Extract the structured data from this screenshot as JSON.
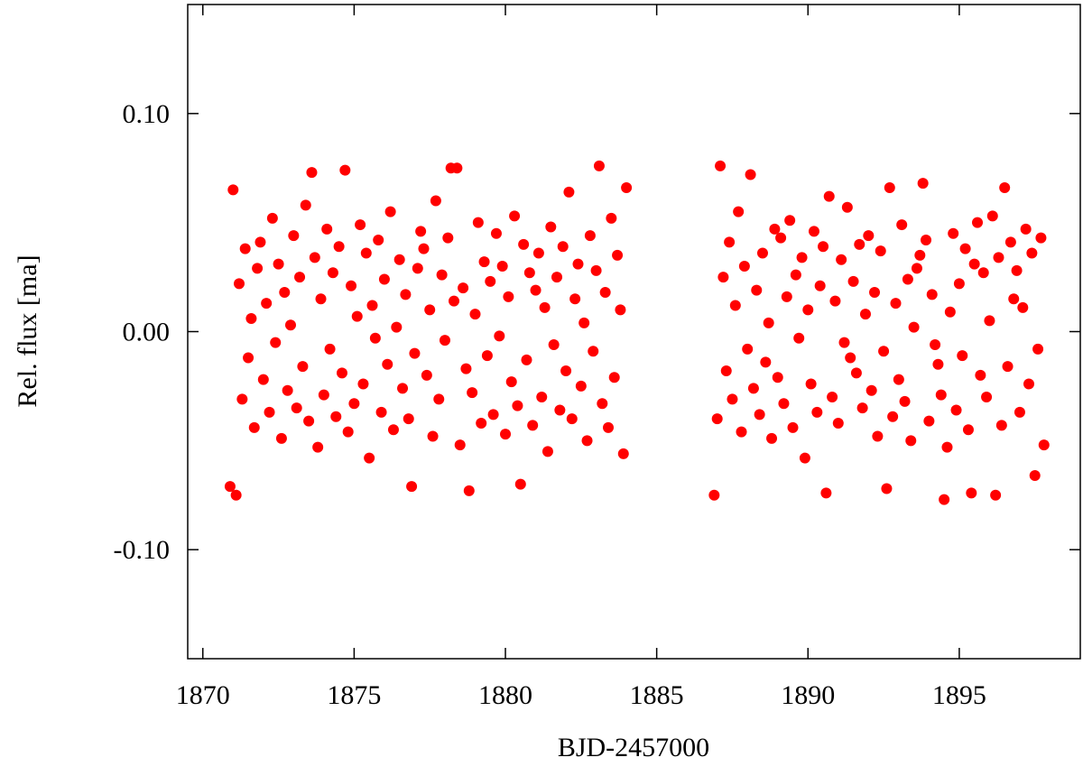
{
  "chart_data": {
    "type": "scatter",
    "x_label": "BJD-2457000",
    "y_label": "Rel. flux [ma]",
    "xlim": [
      1869.5,
      1899
    ],
    "ylim": [
      -0.15,
      0.15
    ],
    "xticks": [
      1870,
      1875,
      1880,
      1885,
      1890,
      1895
    ],
    "yticks": [
      {
        "value": 0.1,
        "label": "0.10"
      },
      {
        "value": 0,
        "label": "0.00"
      },
      {
        "value": -0.1,
        "label": "-0.10"
      }
    ],
    "grid": false,
    "series": [
      {
        "color": "#ff0000",
        "x": [
          1870.9,
          1871,
          1871.1,
          1871.2,
          1871.3,
          1871.4,
          1871.5,
          1871.6,
          1871.7,
          1871.8,
          1871.9,
          1872,
          1872.1,
          1872.2,
          1872.3,
          1872.4,
          1872.5,
          1872.6,
          1872.7,
          1872.8,
          1872.9,
          1873,
          1873.1,
          1873.2,
          1873.3,
          1873.4,
          1873.5,
          1873.6,
          1873.7,
          1873.8,
          1873.9,
          1874,
          1874.1,
          1874.2,
          1874.3,
          1874.4,
          1874.5,
          1874.6,
          1874.7,
          1874.8,
          1874.9,
          1875,
          1875.1,
          1875.2,
          1875.3,
          1875.4,
          1875.5,
          1875.6,
          1875.7,
          1875.8,
          1875.9,
          1876,
          1876.1,
          1876.2,
          1876.3,
          1876.4,
          1876.5,
          1876.6,
          1876.7,
          1876.8,
          1876.9,
          1877,
          1877.1,
          1877.2,
          1877.3,
          1877.4,
          1877.5,
          1877.6,
          1877.7,
          1877.8,
          1877.9,
          1878,
          1878.1,
          1878.2,
          1878.3,
          1878.4,
          1878.5,
          1878.6,
          1878.7,
          1878.8,
          1878.9,
          1879,
          1879.1,
          1879.2,
          1879.3,
          1879.4,
          1879.5,
          1879.6,
          1879.7,
          1879.8,
          1879.9,
          1880,
          1880.1,
          1880.2,
          1880.3,
          1880.4,
          1880.5,
          1880.6,
          1880.7,
          1880.8,
          1880.9,
          1881,
          1881.1,
          1881.2,
          1881.3,
          1881.4,
          1881.5,
          1881.6,
          1881.7,
          1881.8,
          1881.9,
          1882,
          1882.1,
          1882.2,
          1882.3,
          1882.4,
          1882.5,
          1882.6,
          1882.7,
          1882.8,
          1882.9,
          1883,
          1883.1,
          1883.2,
          1883.3,
          1883.4,
          1883.5,
          1883.6,
          1883.7,
          1883.8,
          1883.9,
          1884,
          1886.9,
          1887,
          1887.1,
          1887.2,
          1887.3,
          1887.4,
          1887.5,
          1887.6,
          1887.7,
          1887.8,
          1887.9,
          1888,
          1888.1,
          1888.2,
          1888.3,
          1888.4,
          1888.5,
          1888.6,
          1888.7,
          1888.8,
          1888.9,
          1889,
          1889.1,
          1889.2,
          1889.3,
          1889.4,
          1889.5,
          1889.6,
          1889.7,
          1889.8,
          1889.9,
          1890,
          1890.1,
          1890.2,
          1890.3,
          1890.4,
          1890.5,
          1890.6,
          1890.7,
          1890.8,
          1890.9,
          1891,
          1891.1,
          1891.2,
          1891.3,
          1891.4,
          1891.5,
          1891.6,
          1891.7,
          1891.8,
          1891.9,
          1892,
          1892.1,
          1892.2,
          1892.3,
          1892.4,
          1892.5,
          1892.6,
          1892.7,
          1892.8,
          1892.9,
          1893,
          1893.1,
          1893.2,
          1893.3,
          1893.4,
          1893.5,
          1893.6,
          1893.7,
          1893.8,
          1893.9,
          1894,
          1894.1,
          1894.2,
          1894.3,
          1894.4,
          1894.5,
          1894.6,
          1894.7,
          1894.8,
          1894.9,
          1895,
          1895.1,
          1895.2,
          1895.3,
          1895.4,
          1895.5,
          1895.6,
          1895.7,
          1895.8,
          1895.9,
          1896,
          1896.1,
          1896.2,
          1896.3,
          1896.4,
          1896.5,
          1896.6,
          1896.7,
          1896.8,
          1896.9,
          1897,
          1897.1,
          1897.2,
          1897.3,
          1897.4,
          1897.5,
          1897.6,
          1897.7,
          1897.8
        ],
        "y": [
          -0.071,
          0.065,
          -0.075,
          0.022,
          -0.031,
          0.038,
          -0.012,
          0.006,
          -0.044,
          0.029,
          0.041,
          -0.022,
          0.013,
          -0.037,
          0.052,
          -0.005,
          0.031,
          -0.049,
          0.018,
          -0.027,
          0.003,
          0.044,
          -0.035,
          0.025,
          -0.016,
          0.058,
          -0.041,
          0.073,
          0.034,
          -0.053,
          0.015,
          -0.029,
          0.047,
          -0.008,
          0.027,
          -0.039,
          0.039,
          -0.019,
          0.074,
          -0.046,
          0.021,
          -0.033,
          0.007,
          0.049,
          -0.024,
          0.036,
          -0.058,
          0.012,
          -0.003,
          0.042,
          -0.037,
          0.024,
          -0.015,
          0.055,
          -0.045,
          0.002,
          0.033,
          -0.026,
          0.017,
          -0.04,
          -0.071,
          -0.01,
          0.029,
          0.046,
          0.038,
          -0.02,
          0.01,
          -0.048,
          0.06,
          -0.031,
          0.026,
          -0.004,
          0.043,
          0.075,
          0.014,
          0.075,
          -0.052,
          0.02,
          -0.017,
          -0.073,
          -0.028,
          0.008,
          0.05,
          -0.042,
          0.032,
          -0.011,
          0.023,
          -0.038,
          0.045,
          -0.002,
          0.03,
          -0.047,
          0.016,
          -0.023,
          0.053,
          -0.034,
          -0.07,
          0.04,
          -0.013,
          0.027,
          -0.043,
          0.019,
          0.036,
          -0.03,
          0.011,
          -0.055,
          0.048,
          -0.006,
          0.025,
          -0.036,
          0.039,
          -0.018,
          0.064,
          -0.04,
          0.015,
          0.031,
          -0.025,
          0.004,
          -0.05,
          0.044,
          -0.009,
          0.028,
          0.076,
          -0.033,
          0.018,
          -0.044,
          0.052,
          -0.021,
          0.035,
          0.01,
          -0.056,
          0.066,
          -0.075,
          -0.04,
          0.076,
          0.025,
          -0.018,
          0.041,
          -0.031,
          0.012,
          0.055,
          -0.046,
          0.03,
          -0.008,
          0.072,
          -0.026,
          0.019,
          -0.038,
          0.036,
          -0.014,
          0.004,
          -0.049,
          0.047,
          -0.021,
          0.043,
          -0.033,
          0.016,
          0.051,
          -0.044,
          0.026,
          -0.003,
          0.034,
          -0.058,
          0.01,
          -0.024,
          0.046,
          -0.037,
          0.021,
          0.039,
          -0.074,
          0.062,
          -0.03,
          0.014,
          -0.042,
          0.033,
          -0.005,
          0.057,
          -0.012,
          0.023,
          -0.019,
          0.04,
          -0.035,
          0.008,
          0.044,
          -0.027,
          0.018,
          -0.048,
          0.037,
          -0.009,
          -0.072,
          0.066,
          -0.039,
          0.013,
          -0.022,
          0.049,
          -0.032,
          0.024,
          -0.05,
          0.002,
          0.029,
          0.035,
          0.068,
          0.042,
          -0.041,
          0.017,
          -0.006,
          -0.015,
          -0.029,
          -0.077,
          -0.053,
          0.009,
          0.045,
          -0.036,
          0.022,
          -0.011,
          0.038,
          -0.045,
          -0.074,
          0.031,
          0.05,
          -0.02,
          0.027,
          -0.03,
          0.005,
          0.053,
          -0.075,
          0.034,
          -0.043,
          0.066,
          -0.016,
          0.041,
          0.015,
          0.028,
          -0.037,
          0.011,
          0.047,
          -0.024,
          0.036,
          -0.066,
          -0.008,
          0.043,
          -0.052
        ]
      }
    ]
  }
}
